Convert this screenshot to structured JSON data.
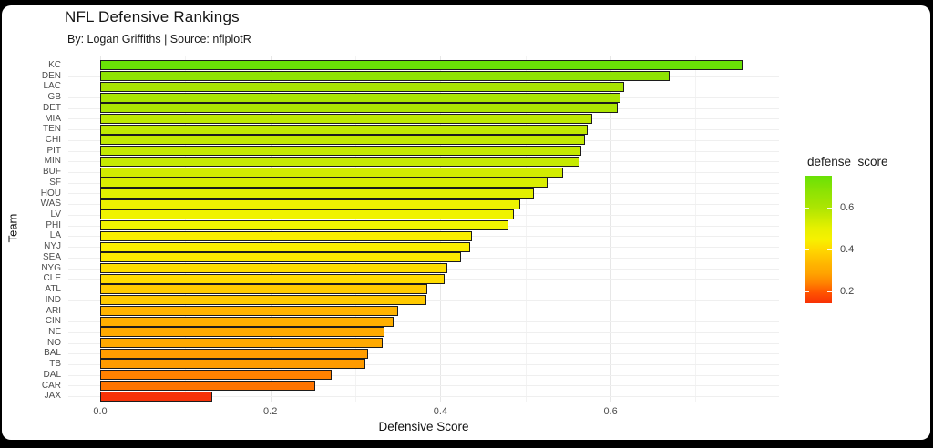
{
  "window": {
    "bg": "#000000",
    "card_bg": "#ffffff"
  },
  "chart_data": {
    "type": "bar",
    "orientation": "horizontal",
    "title": "NFL Defensive Rankings",
    "subtitle": "By: Logan Griffiths | Source: nflplotR",
    "xlabel": "Defensive Score",
    "ylabel": "Team",
    "xlim": [
      0,
      0.795
    ],
    "grid": true,
    "x_major_ticks": [
      0.0,
      0.2,
      0.4,
      0.6
    ],
    "x_tick_labels": [
      "0.0",
      "0.2",
      "0.4",
      "0.6"
    ],
    "x_minor_ticks": [
      0.1,
      0.3,
      0.5,
      0.7
    ],
    "categories": [
      "KC",
      "DEN",
      "LAC",
      "GB",
      "DET",
      "MIA",
      "TEN",
      "CHI",
      "PIT",
      "MIN",
      "BUF",
      "SF",
      "HOU",
      "WAS",
      "LV",
      "PHI",
      "LA",
      "NYJ",
      "SEA",
      "NYG",
      "CLE",
      "ATL",
      "IND",
      "ARI",
      "CIN",
      "NE",
      "NO",
      "BAL",
      "TB",
      "DAL",
      "CAR",
      "JAX"
    ],
    "values": [
      0.755,
      0.669,
      0.616,
      0.612,
      0.608,
      0.578,
      0.573,
      0.57,
      0.566,
      0.563,
      0.544,
      0.526,
      0.51,
      0.494,
      0.486,
      0.48,
      0.437,
      0.435,
      0.424,
      0.408,
      0.405,
      0.385,
      0.383,
      0.35,
      0.345,
      0.334,
      0.332,
      0.315,
      0.312,
      0.272,
      0.253,
      0.132
    ],
    "bar_colors": [
      "#69E106",
      "#8FE303",
      "#A8E402",
      "#AAE502",
      "#ACE502",
      "#BDE801",
      "#C0E801",
      "#C2E901",
      "#C4E901",
      "#C6EA01",
      "#D2EC00",
      "#DAEE00",
      "#E3F000",
      "#EDF200",
      "#F0F300",
      "#F2F400",
      "#FAEF00",
      "#FBEE00",
      "#FCE900",
      "#FEDE00",
      "#FFDC00",
      "#FFCB00",
      "#FFC900",
      "#FFB300",
      "#FFAF00",
      "#FFAA00",
      "#FFA900",
      "#FF9D00",
      "#FF9B00",
      "#FF8100",
      "#FF7400",
      "#F63208"
    ],
    "bar_outline_color": "#1c1c1c",
    "legend": {
      "type": "colorbar",
      "position": "right",
      "title": "defense_score",
      "tick_labels": [
        "0.6",
        "0.4",
        "0.2"
      ],
      "tick_values": [
        0.6,
        0.4,
        0.2
      ],
      "value_range": [
        0.144,
        0.75
      ],
      "gradient_stops": [
        {
          "pct": 0,
          "color": "#69E106"
        },
        {
          "pct": 13,
          "color": "#8FE303"
        },
        {
          "pct": 25,
          "color": "#ADE502"
        },
        {
          "pct": 41,
          "color": "#E6F000"
        },
        {
          "pct": 50,
          "color": "#F7F100"
        },
        {
          "pct": 58,
          "color": "#FFD800"
        },
        {
          "pct": 70,
          "color": "#FFB300"
        },
        {
          "pct": 76,
          "color": "#FFA500"
        },
        {
          "pct": 84,
          "color": "#FF8400"
        },
        {
          "pct": 92,
          "color": "#FF5200"
        },
        {
          "pct": 100,
          "color": "#F83005"
        }
      ]
    }
  }
}
